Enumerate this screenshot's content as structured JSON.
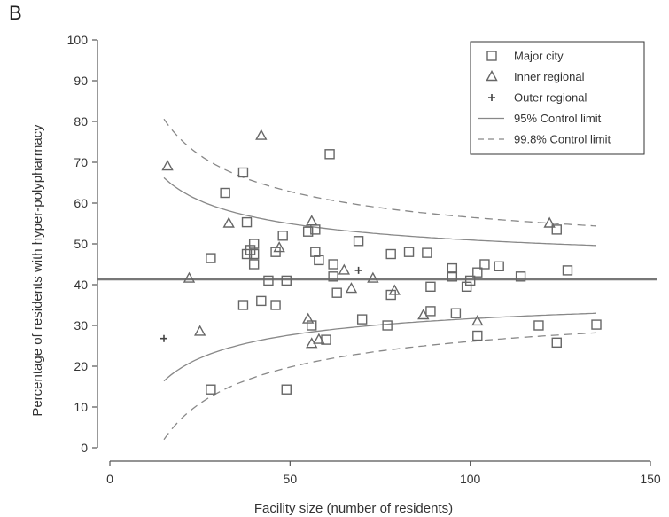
{
  "panel_label": "B",
  "chart_data": {
    "type": "scatter",
    "title": "",
    "xlabel": "Facility size (number of residents)",
    "ylabel": "Percentage of residents with hyper-polypharmacy",
    "xlim": [
      0,
      150
    ],
    "ylim": [
      0,
      100
    ],
    "x_ticks": [
      0,
      50,
      100,
      150
    ],
    "y_ticks": [
      0,
      10,
      20,
      30,
      40,
      50,
      60,
      70,
      80,
      90,
      100
    ],
    "grid": false,
    "legend_position": "top-right",
    "center_line": 41.3,
    "series": [
      {
        "name": "Major city",
        "marker": "square",
        "points": [
          [
            37,
            67.5
          ],
          [
            32,
            62.5
          ],
          [
            38,
            55.3
          ],
          [
            38,
            47.5
          ],
          [
            39,
            48.5
          ],
          [
            40,
            50
          ],
          [
            40,
            47.5
          ],
          [
            40,
            45
          ],
          [
            28,
            46.5
          ],
          [
            37,
            35
          ],
          [
            42,
            36
          ],
          [
            44,
            41
          ],
          [
            46,
            35
          ],
          [
            46,
            48
          ],
          [
            48,
            52
          ],
          [
            49,
            41
          ],
          [
            28,
            14.3
          ],
          [
            49,
            14.3
          ],
          [
            55,
            53
          ],
          [
            57,
            53.5
          ],
          [
            57,
            48
          ],
          [
            58,
            46
          ],
          [
            61,
            72
          ],
          [
            62,
            45
          ],
          [
            62,
            42
          ],
          [
            63,
            38
          ],
          [
            56,
            30
          ],
          [
            60,
            26.5
          ],
          [
            69,
            50.7
          ],
          [
            70,
            31.5
          ],
          [
            77,
            30
          ],
          [
            78,
            47.5
          ],
          [
            78,
            37.5
          ],
          [
            83,
            48
          ],
          [
            88,
            47.8
          ],
          [
            89,
            39.5
          ],
          [
            89,
            33.5
          ],
          [
            95,
            44
          ],
          [
            95,
            42
          ],
          [
            96,
            33
          ],
          [
            99,
            39.5
          ],
          [
            100,
            41
          ],
          [
            102,
            27.5
          ],
          [
            102,
            43
          ],
          [
            104,
            45
          ],
          [
            108,
            44.5
          ],
          [
            114,
            42
          ],
          [
            119,
            30
          ],
          [
            124,
            53.5
          ],
          [
            124,
            25.8
          ],
          [
            127,
            43.5
          ],
          [
            135,
            30.2
          ]
        ]
      },
      {
        "name": "Inner regional",
        "marker": "triangle",
        "points": [
          [
            16,
            69
          ],
          [
            22,
            41.5
          ],
          [
            25,
            28.5
          ],
          [
            33,
            55
          ],
          [
            42,
            76.5
          ],
          [
            47,
            49
          ],
          [
            55,
            31.5
          ],
          [
            56,
            25.5
          ],
          [
            56,
            55.5
          ],
          [
            58,
            26.5
          ],
          [
            65,
            43.5
          ],
          [
            67,
            39
          ],
          [
            73,
            41.5
          ],
          [
            79,
            38.5
          ],
          [
            87,
            32.5
          ],
          [
            102,
            31
          ],
          [
            122,
            55
          ]
        ]
      },
      {
        "name": "Outer regional",
        "marker": "plus",
        "points": [
          [
            15,
            26.8
          ],
          [
            69,
            43.5
          ]
        ]
      },
      {
        "name": "95% Control limit",
        "marker": "solid-line",
        "points": []
      },
      {
        "name": "99.8% Control limit",
        "marker": "dashed-line",
        "points": []
      }
    ]
  }
}
